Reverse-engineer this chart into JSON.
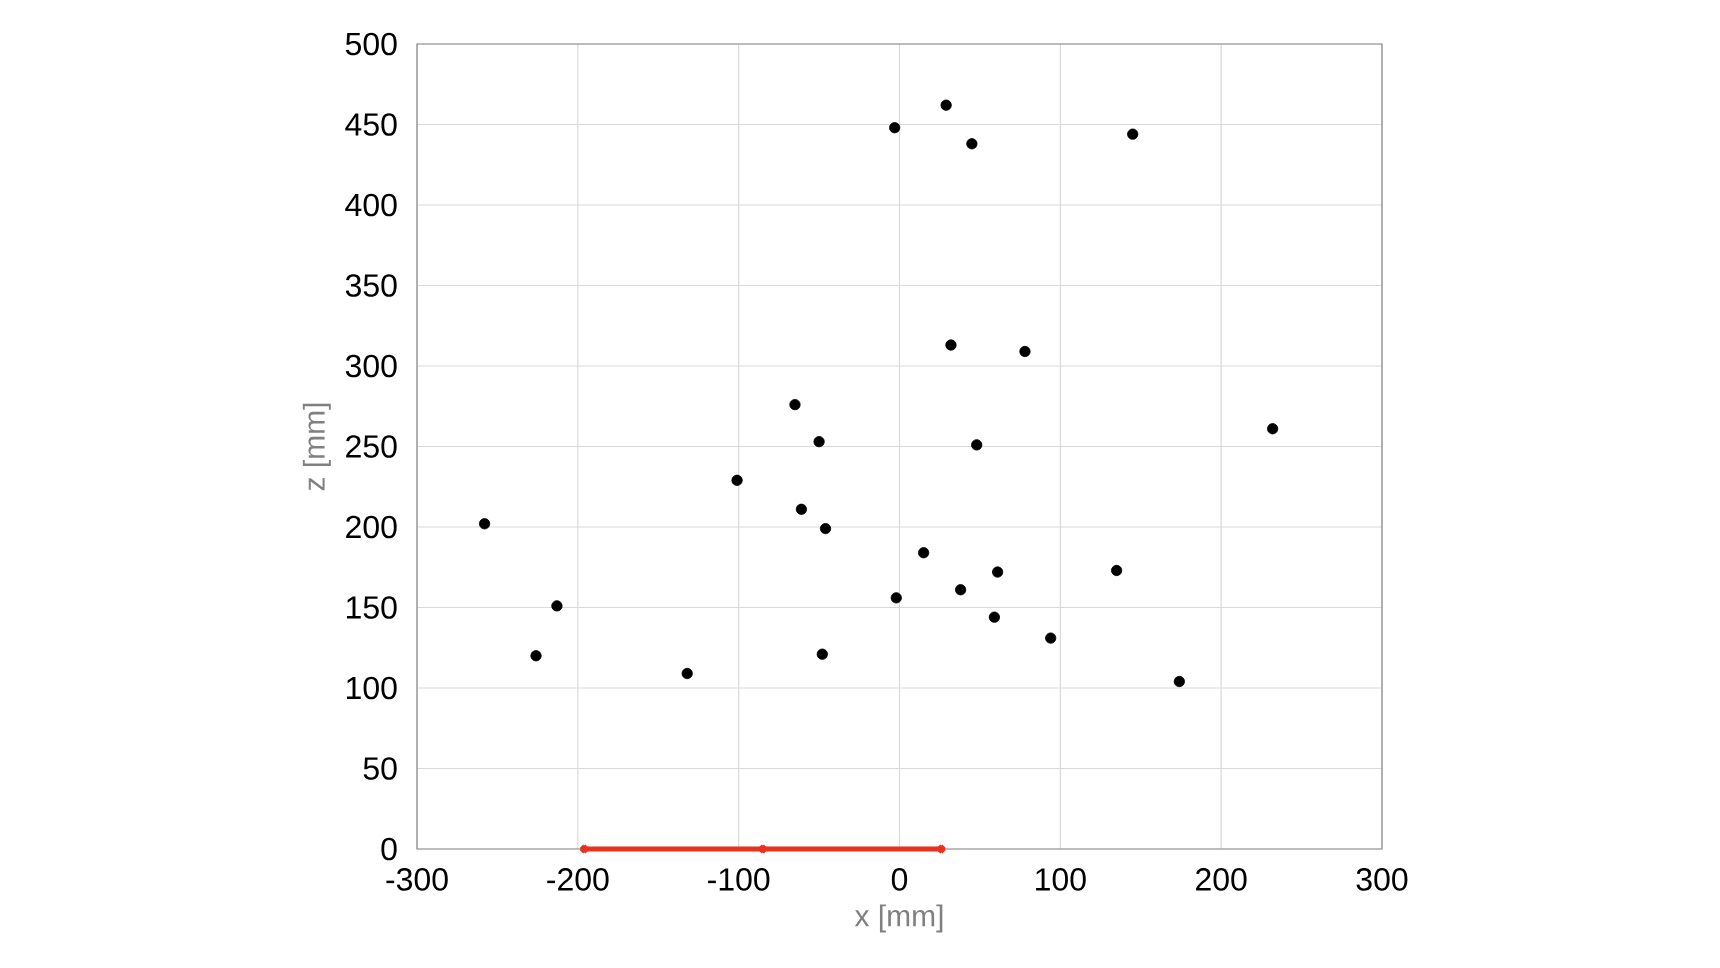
{
  "chart_data": {
    "type": "scatter",
    "xlabel": "x [mm]",
    "ylabel": "z [mm]",
    "xlim": [
      -300,
      300
    ],
    "ylim": [
      0,
      500
    ],
    "xticks": [
      -300,
      -200,
      -100,
      0,
      100,
      200,
      300
    ],
    "yticks": [
      0,
      50,
      100,
      150,
      200,
      250,
      300,
      350,
      400,
      450,
      500
    ],
    "grid": true,
    "series": [
      {
        "color": "#000000",
        "marker": "circle",
        "x": [
          -258,
          -213,
          -226,
          -132,
          -101,
          -65,
          -50,
          -61,
          -46,
          -48,
          -3,
          29,
          45,
          145,
          32,
          78,
          48,
          232,
          15,
          61,
          135,
          38,
          -2,
          59,
          94,
          174
        ],
        "values": [
          202,
          151,
          120,
          109,
          229,
          276,
          253,
          211,
          199,
          121,
          448,
          462,
          438,
          444,
          313,
          309,
          251,
          261,
          184,
          172,
          173,
          161,
          156,
          144,
          131,
          104
        ]
      },
      {
        "type": "line",
        "color": "#e8321e",
        "marker": "cross",
        "x": [
          -196,
          -85,
          26
        ],
        "values": [
          0,
          0,
          0
        ]
      }
    ]
  }
}
